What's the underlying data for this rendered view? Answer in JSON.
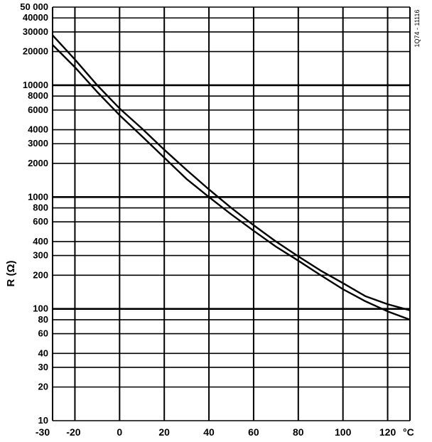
{
  "chart_data": {
    "type": "line",
    "ylabel": "R (Ω)",
    "x_unit": "°C",
    "y_scale": "log",
    "xlim": [
      -30,
      130
    ],
    "ylim": [
      10,
      50000
    ],
    "x_ticks": [
      -30,
      -20,
      0,
      20,
      40,
      60,
      80,
      100,
      120
    ],
    "x_tick_labels": [
      "-30",
      "-20",
      "0",
      "20",
      "40",
      "60",
      "80",
      "100",
      "120"
    ],
    "y_ticks": [
      10,
      20,
      30,
      40,
      60,
      80,
      100,
      200,
      300,
      400,
      600,
      800,
      1000,
      2000,
      3000,
      4000,
      6000,
      8000,
      10000,
      20000,
      30000,
      40000,
      50000
    ],
    "y_tick_labels": [
      "10",
      "20",
      "30",
      "40",
      "60",
      "80",
      "100",
      "200",
      "300",
      "400",
      "600",
      "800",
      "1000",
      "2000",
      "3000",
      "4000",
      "6000",
      "8000",
      "10000",
      "20000",
      "30000",
      "40000",
      "50 000"
    ],
    "bold_y_lines": [
      100,
      1000,
      10000
    ],
    "grid": true,
    "figure_code": "1Q74 - 11116",
    "series": [
      {
        "x": [
          -30,
          -20,
          -10,
          0,
          10,
          20,
          30,
          40,
          50,
          60,
          70,
          80,
          90,
          100,
          110,
          120,
          130
        ],
        "y": [
          28000,
          17000,
          10000,
          6200,
          4100,
          2650,
          1750,
          1170,
          800,
          560,
          400,
          295,
          220,
          170,
          130,
          110,
          97
        ]
      },
      {
        "x": [
          -30,
          -20,
          -10,
          0,
          10,
          20,
          30,
          40,
          50,
          60,
          70,
          80,
          90,
          100,
          110,
          120,
          130
        ],
        "y": [
          23000,
          14500,
          8700,
          5400,
          3500,
          2250,
          1450,
          1000,
          700,
          500,
          360,
          270,
          200,
          150,
          117,
          95,
          80
        ]
      }
    ]
  }
}
